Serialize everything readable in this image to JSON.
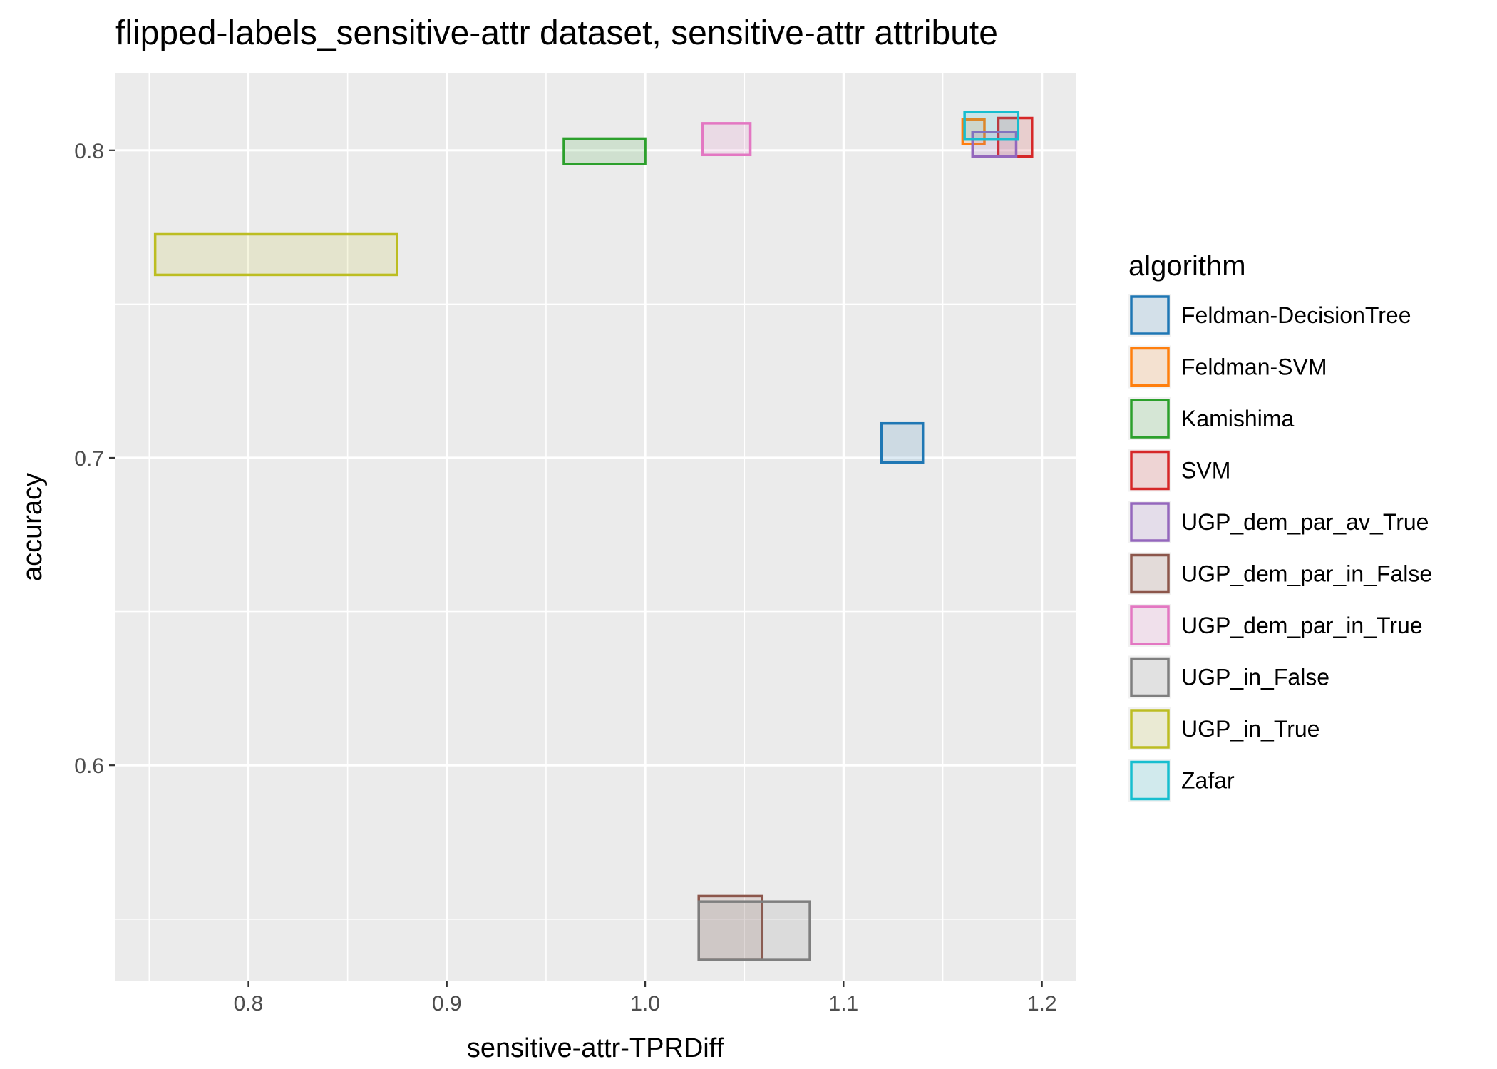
{
  "chart_data": {
    "type": "scatter",
    "title": "flipped-labels_sensitive-attr dataset, sensitive-attr attribute",
    "xlabel": "sensitive-attr-TPRDiff",
    "ylabel": "accuracy",
    "xlim": [
      0.733,
      1.217
    ],
    "ylim": [
      0.53,
      0.825
    ],
    "x_ticks": [
      0.8,
      0.9,
      1.0,
      1.1,
      1.2
    ],
    "x_tick_labels": [
      "0.8",
      "0.9",
      "1.0",
      "1.1",
      "1.2"
    ],
    "y_ticks": [
      0.6,
      0.7,
      0.8
    ],
    "y_tick_labels": [
      "0.6",
      "0.7",
      "0.8"
    ],
    "grid": true,
    "legend_title": "algorithm",
    "legend_position": "right",
    "series": [
      {
        "name": "Feldman-DecisionTree",
        "color": "#1f77b4",
        "x_range": [
          1.119,
          1.14
        ],
        "y_range": [
          0.6985,
          0.7112
        ]
      },
      {
        "name": "Feldman-SVM",
        "color": "#ff7f0e",
        "x_range": [
          1.16,
          1.171
        ],
        "y_range": [
          0.802,
          0.81
        ]
      },
      {
        "name": "Kamishima",
        "color": "#2ca02c",
        "x_range": [
          0.959,
          1.0
        ],
        "y_range": [
          0.7955,
          0.8038
        ]
      },
      {
        "name": "SVM",
        "color": "#d62728",
        "x_range": [
          1.178,
          1.195
        ],
        "y_range": [
          0.798,
          0.8105
        ]
      },
      {
        "name": "UGP_dem_par_av_True",
        "color": "#9467bd",
        "x_range": [
          1.165,
          1.187
        ],
        "y_range": [
          0.798,
          0.806
        ]
      },
      {
        "name": "UGP_dem_par_in_False",
        "color": "#8c564b",
        "x_range": [
          1.027,
          1.059
        ],
        "y_range": [
          0.5367,
          0.5575
        ]
      },
      {
        "name": "UGP_dem_par_in_True",
        "color": "#e377c2",
        "x_range": [
          1.029,
          1.053
        ],
        "y_range": [
          0.7985,
          0.8088
        ]
      },
      {
        "name": "UGP_in_False",
        "color": "#7f7f7f",
        "x_range": [
          1.027,
          1.083
        ],
        "y_range": [
          0.5367,
          0.5557
        ]
      },
      {
        "name": "UGP_in_True",
        "color": "#bcbd22",
        "x_range": [
          0.753,
          0.875
        ],
        "y_range": [
          0.7595,
          0.7727
        ]
      },
      {
        "name": "Zafar",
        "color": "#17becf",
        "x_range": [
          1.161,
          1.188
        ],
        "y_range": [
          0.8035,
          0.8125
        ]
      }
    ]
  },
  "colors": {
    "panel_background": "#ebebeb",
    "grid_line": "#ffffff",
    "tick_text": "#4d4d4d",
    "axis_tick": "#333333"
  }
}
